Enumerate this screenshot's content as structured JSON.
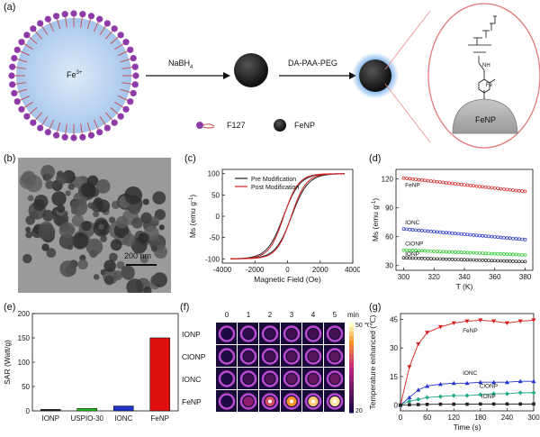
{
  "panels": {
    "a": "(a)",
    "b": "(b)",
    "c": "(c)",
    "d": "(d)",
    "e": "(e)",
    "f": "(f)",
    "g": "(g)"
  },
  "scheme": {
    "fe_label": "Fe",
    "fe_sup": "3+",
    "arrow1": "NaBH",
    "arrow1_sub": "4",
    "arrow2": "DA-PAA-PEG",
    "legend_f127": "F127",
    "legend_fenp": "FeNP",
    "surface_label": "FeNP",
    "fe_bond": "Fe",
    "nh_label": "NH"
  },
  "tem": {
    "scalebar": "200 nm"
  },
  "chart_data": [
    {
      "id": "c",
      "type": "line",
      "title": "",
      "xlabel": "Magnetic Field (Oe)",
      "ylabel": "Ms (emu g",
      "ylabel_sup": "-1",
      "ylabel_end": ")",
      "xlim": [
        -4000,
        4000
      ],
      "ylim": [
        -110,
        110
      ],
      "xticks": [
        -4000,
        -2000,
        0,
        2000,
        4000
      ],
      "yticks": [
        -100,
        -50,
        0,
        50,
        100
      ],
      "legend": "top-left",
      "series": [
        {
          "name": "Pre Modification",
          "color": "#222222",
          "ms": 100,
          "hc": 250,
          "w": 1000
        },
        {
          "name": "Post Modification",
          "color": "#d62020",
          "ms": 100,
          "hc": 230,
          "w": 900
        }
      ]
    },
    {
      "id": "d",
      "type": "scatter",
      "xlabel": "T (K)",
      "ylabel": "Ms (emu g",
      "ylabel_sup": "-1",
      "ylabel_end": ")",
      "xlim": [
        295,
        385
      ],
      "ylim": [
        25,
        130
      ],
      "xticks": [
        300,
        320,
        340,
        360,
        380
      ],
      "yticks": [
        30,
        60,
        90,
        120
      ],
      "series": [
        {
          "name": "FeNP",
          "color": "#d62020",
          "y0": 121,
          "y1": 107
        },
        {
          "name": "IONC",
          "color": "#2233cc",
          "y0": 68,
          "y1": 57
        },
        {
          "name": "ClONP",
          "color": "#22cc22",
          "y0": 46,
          "y1": 41
        },
        {
          "name": "IONP",
          "color": "#222222",
          "y0": 38,
          "y1": 34
        }
      ]
    },
    {
      "id": "e",
      "type": "bar",
      "ylabel": "SAR (Watt/g)",
      "categories": [
        "IONP",
        "USPIO-30",
        "IONC",
        "FeNP"
      ],
      "values": [
        3,
        5,
        10,
        150
      ],
      "colors": [
        "#222222",
        "#22cc22",
        "#2233cc",
        "#e01010"
      ],
      "ylim": [
        0,
        200
      ],
      "yticks": [
        0,
        50,
        100,
        150,
        200
      ]
    },
    {
      "id": "g",
      "type": "line",
      "xlabel": "Time (s)",
      "ylabel": "Temperature enhanced (℃)",
      "xlim": [
        0,
        300
      ],
      "ylim": [
        -3,
        48
      ],
      "xticks": [
        0,
        60,
        120,
        180,
        240,
        300
      ],
      "yticks": [
        0,
        15,
        30,
        45
      ],
      "series": [
        {
          "name": "FeNP",
          "color": "#d62020",
          "marker": "tri-down",
          "x": [
            0,
            20,
            40,
            60,
            90,
            120,
            150,
            180,
            210,
            240,
            270,
            300
          ],
          "y": [
            0,
            20,
            32,
            38,
            41,
            43,
            44,
            44.5,
            44,
            43,
            44,
            44.5
          ]
        },
        {
          "name": "IONC",
          "color": "#2233cc",
          "marker": "tri-up",
          "x": [
            0,
            20,
            40,
            60,
            90,
            120,
            150,
            180,
            210,
            240,
            270,
            300
          ],
          "y": [
            0,
            4,
            8,
            10,
            11,
            11.5,
            11.5,
            12,
            12,
            12,
            12.5,
            12.5
          ]
        },
        {
          "name": "ClONP",
          "color": "#22aa88",
          "marker": "diamond",
          "x": [
            0,
            20,
            40,
            60,
            90,
            120,
            150,
            180,
            210,
            240,
            270,
            300
          ],
          "y": [
            0,
            2,
            3,
            4,
            4.5,
            5,
            5,
            5.5,
            6,
            6,
            6.5,
            6.5
          ]
        },
        {
          "name": "IONP",
          "color": "#222222",
          "marker": "square",
          "x": [
            0,
            20,
            40,
            60,
            90,
            120,
            150,
            180,
            210,
            240,
            270,
            300
          ],
          "y": [
            0,
            0.2,
            0.3,
            0.4,
            0.5,
            0.5,
            0.5,
            0.6,
            0.6,
            0.6,
            0.6,
            0.6
          ]
        }
      ]
    }
  ],
  "thermal": {
    "times": [
      "0",
      "1",
      "2",
      "3",
      "4",
      "5"
    ],
    "unit": "min",
    "rows": [
      "IONP",
      "ClONP",
      "IONC",
      "FeNP"
    ],
    "scale_max": "50 ℃",
    "scale_min": "20",
    "intensity": [
      [
        0.0,
        0.05,
        0.08,
        0.1,
        0.1,
        0.12
      ],
      [
        0.0,
        0.08,
        0.12,
        0.15,
        0.18,
        0.2
      ],
      [
        0.0,
        0.1,
        0.15,
        0.2,
        0.22,
        0.25
      ],
      [
        0.0,
        0.35,
        0.6,
        0.8,
        0.9,
        0.95
      ]
    ]
  }
}
